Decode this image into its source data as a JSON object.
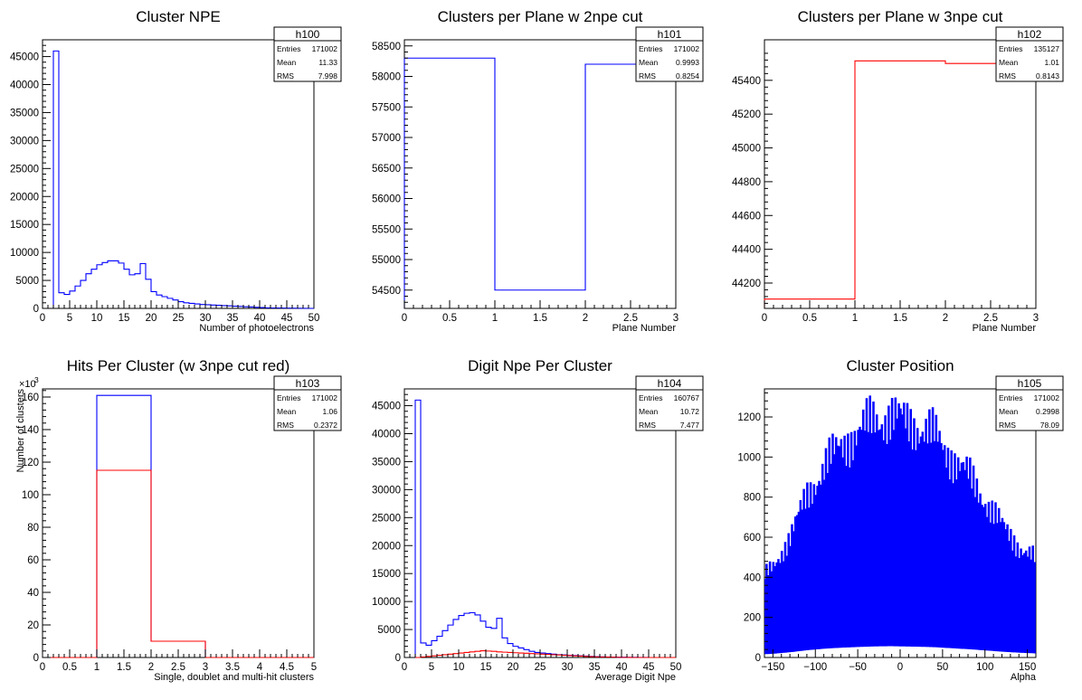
{
  "chart_data": [
    {
      "id": "h100",
      "type": "histogram",
      "title": "Cluster NPE",
      "xlabel": "Number of photoelectrons",
      "ylabel": "",
      "xlim": [
        0,
        50
      ],
      "ylim": [
        0,
        48000
      ],
      "xticks": [
        0,
        5,
        10,
        15,
        20,
        25,
        30,
        35,
        40,
        45,
        50
      ],
      "yticks": [
        0,
        5000,
        10000,
        15000,
        20000,
        25000,
        30000,
        35000,
        40000,
        45000
      ],
      "stats": {
        "name": "h100",
        "Entries": "171002",
        "Mean": "11.33",
        "RMS": "7.998"
      },
      "series": [
        {
          "color": "#0000ff",
          "edges_start": 2,
          "bin_width": 1,
          "values": [
            46000,
            2800,
            2500,
            3100,
            4000,
            5000,
            6200,
            7000,
            7800,
            8200,
            8500,
            8500,
            8100,
            7000,
            6000,
            6200,
            8000,
            5200,
            3000,
            2400,
            2100,
            1800,
            1500,
            1200,
            1000,
            900,
            800,
            700,
            650,
            600,
            550,
            500,
            450,
            400,
            350,
            300,
            250,
            200,
            150,
            100,
            80
          ]
        }
      ]
    },
    {
      "id": "h101",
      "type": "histogram",
      "title": "Clusters per Plane w 2npe cut",
      "xlabel": "Plane Number",
      "ylabel": "",
      "xlim": [
        0,
        3
      ],
      "ylim": [
        54200,
        58600
      ],
      "xticks": [
        0,
        0.5,
        1,
        1.5,
        2,
        2.5,
        3
      ],
      "yticks": [
        54500,
        55000,
        55500,
        56000,
        56500,
        57000,
        57500,
        58000,
        58500
      ],
      "stats": {
        "name": "h101",
        "Entries": "171002",
        "Mean": "0.9993",
        "RMS": "0.8254"
      },
      "series": [
        {
          "color": "#0000ff",
          "edges_start": 0,
          "bin_width": 1,
          "values": [
            58300,
            54500,
            58200
          ]
        }
      ]
    },
    {
      "id": "h102",
      "type": "histogram",
      "title": "Clusters per Plane w 3npe cut",
      "xlabel": "Plane Number",
      "ylabel": "",
      "xlim": [
        0,
        3
      ],
      "ylim": [
        44050,
        45640
      ],
      "xticks": [
        0,
        0.5,
        1,
        1.5,
        2,
        2.5,
        3
      ],
      "yticks": [
        44200,
        44400,
        44600,
        44800,
        45000,
        45200,
        45400
      ],
      "stats": {
        "name": "h102",
        "Entries": "135127",
        "Mean": "1.01",
        "RMS": "0.8143"
      },
      "series": [
        {
          "color": "#ff0000",
          "edges_start": 0,
          "bin_width": 1,
          "values": [
            44105,
            45515,
            45500
          ]
        }
      ]
    },
    {
      "id": "h103",
      "type": "histogram",
      "title": "Hits Per Cluster (w 3npe cut red)",
      "xlabel": "Single, doublet and multi-hit clusters",
      "ylabel": "Number of clusters",
      "y_exponent": "×10",
      "y_exponent_power": "3",
      "xlim": [
        0,
        5
      ],
      "ylim": [
        0,
        165
      ],
      "xticks": [
        0,
        0.5,
        1,
        1.5,
        2,
        2.5,
        3,
        3.5,
        4,
        4.5,
        5
      ],
      "yticks": [
        0,
        20,
        40,
        60,
        80,
        100,
        120,
        140,
        160
      ],
      "ytick_labels": [
        "0",
        "20",
        "40",
        "60",
        "80",
        "100",
        "120",
        "140",
        "160"
      ],
      "stats": {
        "name": "h103",
        "Entries": "171002",
        "Mean": "1.06",
        "RMS": "0.2372"
      },
      "series": [
        {
          "color": "#0000ff",
          "edges_start": 0,
          "bin_width": 1,
          "values": [
            0,
            161,
            10,
            0,
            0
          ]
        },
        {
          "color": "#ff0000",
          "edges_start": 0,
          "bin_width": 1,
          "values": [
            0,
            115,
            10,
            0,
            0
          ]
        }
      ]
    },
    {
      "id": "h104",
      "type": "histogram",
      "title": "Digit Npe Per Cluster",
      "xlabel": "Average Digit Npe",
      "ylabel": "",
      "xlim": [
        0,
        50
      ],
      "ylim": [
        0,
        48000
      ],
      "xticks": [
        0,
        5,
        10,
        15,
        20,
        25,
        30,
        35,
        40,
        45,
        50
      ],
      "yticks": [
        0,
        5000,
        10000,
        15000,
        20000,
        25000,
        30000,
        35000,
        40000,
        45000
      ],
      "stats": {
        "name": "h104",
        "Entries": "160767",
        "Mean": "10.72",
        "RMS": "7.477"
      },
      "series": [
        {
          "color": "#0000ff",
          "edges_start": 2,
          "bin_width": 1,
          "values": [
            46000,
            2600,
            2200,
            3000,
            3800,
            4800,
            5800,
            6800,
            7500,
            7900,
            8000,
            7600,
            6500,
            5400,
            5200,
            7000,
            3500,
            2500,
            2000,
            1700,
            1400,
            1100,
            900,
            800,
            700,
            600,
            500,
            450,
            400,
            350,
            300,
            250,
            200,
            150,
            120,
            100,
            80,
            60,
            50,
            40,
            30,
            20,
            10,
            0,
            0,
            0,
            0,
            0
          ]
        },
        {
          "color": "#ff0000",
          "edges_start": 2,
          "bin_width": 1,
          "values": [
            0,
            100,
            200,
            300,
            400,
            500,
            600,
            700,
            800,
            900,
            1000,
            1100,
            1200,
            1150,
            1100,
            1000,
            950,
            900,
            850,
            800,
            750,
            700,
            650,
            600,
            550,
            500,
            450,
            400,
            350,
            300,
            250,
            200,
            150,
            120,
            100,
            80,
            60,
            40,
            20,
            10,
            0,
            0,
            0,
            0,
            0,
            0,
            0,
            0
          ]
        }
      ]
    },
    {
      "id": "h105",
      "type": "histogram",
      "title": "Cluster Position",
      "xlabel": "Alpha",
      "ylabel": "",
      "xlim": [
        -160,
        160
      ],
      "ylim": [
        0,
        1340
      ],
      "xticks": [
        -150,
        -100,
        -50,
        0,
        50,
        100,
        150
      ],
      "xtick_labels": [
        "−150",
        "−100",
        "−50",
        "0",
        "50",
        "100",
        "150"
      ],
      "yticks": [
        0,
        200,
        400,
        600,
        800,
        1000,
        1200
      ],
      "stats": {
        "name": "h105",
        "Entries": "171002",
        "Mean": "0.2998",
        "RMS": "78.09"
      },
      "series": [
        {
          "color": "#0000ff",
          "style": "dense",
          "bin_width": 1,
          "edges_start": -160,
          "envelope": [
            [
              -160,
              400
            ],
            [
              -150,
              450
            ],
            [
              -130,
              600
            ],
            [
              -110,
              800
            ],
            [
              -90,
              950
            ],
            [
              -70,
              1050
            ],
            [
              -50,
              1120
            ],
            [
              -30,
              1180
            ],
            [
              -10,
              1200
            ],
            [
              0,
              1180
            ],
            [
              20,
              1150
            ],
            [
              40,
              1100
            ],
            [
              60,
              1000
            ],
            [
              80,
              900
            ],
            [
              100,
              780
            ],
            [
              120,
              650
            ],
            [
              140,
              550
            ],
            [
              160,
              480
            ]
          ],
          "comb_low": 0.05
        }
      ]
    }
  ]
}
